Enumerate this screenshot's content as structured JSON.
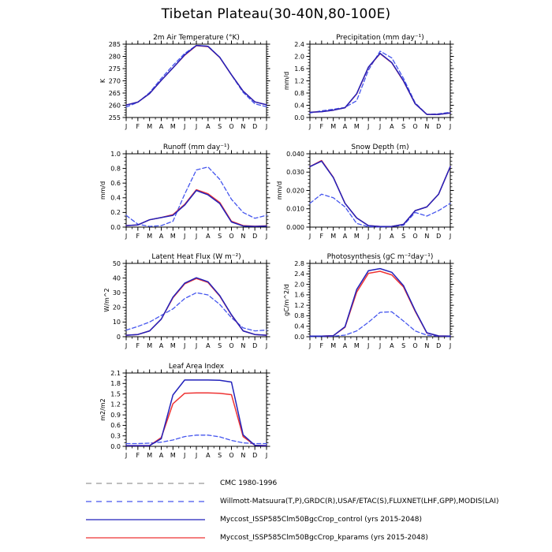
{
  "title": "Tibetan Plateau(30-40N,80-100E)",
  "months": [
    "J",
    "F",
    "M",
    "A",
    "M",
    "J",
    "J",
    "A",
    "S",
    "O",
    "N",
    "D",
    "J"
  ],
  "colors": {
    "control": "#2222bb",
    "kparams": "#ee3333",
    "obs": "#4455ee",
    "cmc": "#999999"
  },
  "chart_data": [
    {
      "type": "line",
      "title": "2m Air Temperature (°K)",
      "ylabel": "K",
      "ylim": [
        255,
        285
      ],
      "yticks": [
        "255",
        "260",
        "265",
        "270",
        "275",
        "280",
        "285"
      ],
      "yminor": 4,
      "series": [
        {
          "name": "obs",
          "style": "dashed",
          "color_key": "obs",
          "values": [
            259.3,
            261.2,
            265.2,
            271.0,
            276.3,
            281.2,
            284.5,
            284.2,
            279.6,
            272.4,
            265.3,
            260.6,
            259.4
          ]
        },
        {
          "name": "kparams",
          "style": "solid",
          "color_key": "kparams",
          "values": [
            260.1,
            261.3,
            264.8,
            270.2,
            275.3,
            280.5,
            284.4,
            284.0,
            279.5,
            272.5,
            265.8,
            261.4,
            260.2
          ]
        },
        {
          "name": "control",
          "style": "solid",
          "color_key": "control",
          "values": [
            260.1,
            261.3,
            264.8,
            270.2,
            275.3,
            280.6,
            284.5,
            284.1,
            279.6,
            272.5,
            265.8,
            261.4,
            260.2
          ]
        }
      ]
    },
    {
      "type": "line",
      "title": "Precipitation (mm day⁻¹)",
      "ylabel": "mm/d",
      "ylim": [
        0,
        2.4
      ],
      "yticks": [
        "0.0",
        "0.4",
        "0.8",
        "1.2",
        "1.6",
        "2.0",
        "2.4"
      ],
      "yminor": 3,
      "series": [
        {
          "name": "obs",
          "style": "dashed",
          "color_key": "obs",
          "values": [
            0.15,
            0.22,
            0.27,
            0.33,
            0.55,
            1.55,
            2.17,
            1.95,
            1.28,
            0.48,
            0.1,
            0.12,
            0.17
          ]
        },
        {
          "name": "kparams",
          "style": "solid",
          "color_key": "kparams",
          "values": [
            0.17,
            0.19,
            0.24,
            0.32,
            0.77,
            1.64,
            2.09,
            1.79,
            1.19,
            0.45,
            0.1,
            0.1,
            0.15
          ]
        },
        {
          "name": "control",
          "style": "solid",
          "color_key": "control",
          "values": [
            0.17,
            0.19,
            0.24,
            0.32,
            0.78,
            1.65,
            2.1,
            1.8,
            1.2,
            0.45,
            0.1,
            0.1,
            0.15
          ]
        }
      ]
    },
    {
      "type": "line",
      "title": "Runoff (mm day⁻¹)",
      "ylabel": "mm/d",
      "ylim": [
        0,
        1.0
      ],
      "yticks": [
        "0.0",
        "0.2",
        "0.4",
        "0.6",
        "0.8",
        "1.0"
      ],
      "yminor": 3,
      "series": [
        {
          "name": "obs",
          "style": "dashed",
          "color_key": "obs",
          "values": [
            0.16,
            0.04,
            0.01,
            0.02,
            0.08,
            0.45,
            0.78,
            0.82,
            0.65,
            0.38,
            0.2,
            0.12,
            0.16
          ]
        },
        {
          "name": "kparams",
          "style": "solid",
          "color_key": "kparams",
          "values": [
            0.02,
            0.03,
            0.1,
            0.13,
            0.17,
            0.31,
            0.51,
            0.455,
            0.335,
            0.08,
            0.02,
            0.012,
            0.017
          ]
        },
        {
          "name": "control",
          "style": "solid",
          "color_key": "control",
          "values": [
            0.02,
            0.03,
            0.1,
            0.13,
            0.16,
            0.3,
            0.5,
            0.44,
            0.32,
            0.07,
            0.015,
            0.01,
            0.015
          ]
        }
      ]
    },
    {
      "type": "line",
      "title": "Snow Depth (m)",
      "ylabel": "mm/d",
      "ylim": [
        0,
        0.04
      ],
      "yticks": [
        "0.000",
        "0.010",
        "0.020",
        "0.030",
        "0.040"
      ],
      "yminor": 4,
      "series": [
        {
          "name": "obs",
          "style": "dashed",
          "color_key": "obs",
          "values": [
            0.013,
            0.018,
            0.016,
            0.011,
            0.002,
            0.0002,
            0.0001,
            0.0002,
            0.001,
            0.008,
            0.006,
            0.009,
            0.013
          ]
        },
        {
          "name": "kparams",
          "style": "solid",
          "color_key": "kparams",
          "values": [
            0.033,
            0.0363,
            0.0272,
            0.013,
            0.005,
            0.0008,
            0.0003,
            0.0004,
            0.0015,
            0.009,
            0.011,
            0.018,
            0.033
          ]
        },
        {
          "name": "control",
          "style": "solid",
          "color_key": "control",
          "values": [
            0.033,
            0.036,
            0.027,
            0.013,
            0.005,
            0.0008,
            0.0003,
            0.0004,
            0.0015,
            0.009,
            0.011,
            0.018,
            0.033
          ]
        }
      ]
    },
    {
      "type": "line",
      "title": "Latent Heat Flux (W m⁻²)",
      "ylabel": "W/m^2",
      "ylim": [
        0,
        50
      ],
      "yticks": [
        "0",
        "10",
        "20",
        "30",
        "40",
        "50"
      ],
      "yminor": 4,
      "series": [
        {
          "name": "obs",
          "style": "dashed",
          "color_key": "obs",
          "values": [
            4.5,
            7,
            10,
            14.5,
            19,
            26,
            30,
            28.5,
            22,
            13,
            6,
            4,
            4.5
          ]
        },
        {
          "name": "kparams",
          "style": "solid",
          "color_key": "kparams",
          "values": [
            1,
            1.5,
            4,
            12,
            26.5,
            36,
            39.7,
            37,
            27.7,
            14.8,
            4,
            1.5,
            1
          ]
        },
        {
          "name": "control",
          "style": "solid",
          "color_key": "control",
          "values": [
            1,
            1.5,
            4,
            12,
            27,
            36.5,
            40.2,
            37.5,
            28,
            15,
            4,
            1.5,
            1
          ]
        }
      ]
    },
    {
      "type": "line",
      "title": "Photosynthesis (gC m⁻²day⁻¹)",
      "ylabel": "gC/m^2/d",
      "ylim": [
        0,
        2.8
      ],
      "yticks": [
        "0.0",
        "0.4",
        "0.8",
        "1.2",
        "1.6",
        "2.0",
        "2.4",
        "2.8"
      ],
      "yminor": 3,
      "series": [
        {
          "name": "obs",
          "style": "dashed",
          "color_key": "obs",
          "values": [
            0.01,
            0.01,
            0.02,
            0.06,
            0.22,
            0.55,
            0.93,
            0.95,
            0.6,
            0.22,
            0.06,
            0.02,
            0.01
          ]
        },
        {
          "name": "kparams",
          "style": "solid",
          "color_key": "kparams",
          "values": [
            0.02,
            0.02,
            0.04,
            0.36,
            1.7,
            2.42,
            2.5,
            2.36,
            1.9,
            0.97,
            0.14,
            0.03,
            0.02
          ]
        },
        {
          "name": "control",
          "style": "solid",
          "color_key": "control",
          "values": [
            0.02,
            0.02,
            0.04,
            0.38,
            1.8,
            2.52,
            2.6,
            2.46,
            1.95,
            1.0,
            0.15,
            0.03,
            0.02
          ]
        }
      ]
    },
    {
      "type": "line",
      "title": "Leaf Area Index",
      "ylabel": "m2/m2",
      "ylim": [
        0,
        2.1
      ],
      "yticks": [
        "0.0",
        "0.3",
        "0.6",
        "0.9",
        "1.2",
        "1.5",
        "1.8",
        "2.1"
      ],
      "yminor": 2,
      "series": [
        {
          "name": "obs",
          "style": "dashed",
          "color_key": "obs",
          "values": [
            0.08,
            0.08,
            0.09,
            0.12,
            0.18,
            0.28,
            0.32,
            0.32,
            0.27,
            0.17,
            0.1,
            0.08,
            0.08
          ]
        },
        {
          "name": "kparams",
          "style": "solid",
          "color_key": "kparams",
          "values": [
            0.02,
            0.02,
            0.02,
            0.25,
            1.22,
            1.52,
            1.53,
            1.53,
            1.52,
            1.48,
            0.28,
            0.03,
            0.02
          ]
        },
        {
          "name": "control",
          "style": "solid",
          "color_key": "control",
          "values": [
            0.02,
            0.02,
            0.02,
            0.22,
            1.47,
            1.9,
            1.9,
            1.9,
            1.89,
            1.84,
            0.33,
            0.03,
            0.02
          ]
        }
      ]
    }
  ],
  "legend": {
    "items": [
      {
        "label": "CMC 1980-1996",
        "color_key": "cmc",
        "style": "dashed"
      },
      {
        "label": "Willmott-Matsuura(T,P),GRDC(R),USAF/ETAC(S),FLUXNET(LHF,GPP),MODIS(LAI)",
        "color_key": "obs",
        "style": "dashed"
      },
      {
        "label": "Myccost_ISSP585Clm50BgcCrop_control (yrs 2015-2048)",
        "color_key": "control",
        "style": "solid"
      },
      {
        "label": "Myccost_ISSP585Clm50BgcCrop_kparams (yrs 2015-2048)",
        "color_key": "kparams",
        "style": "solid"
      }
    ]
  }
}
